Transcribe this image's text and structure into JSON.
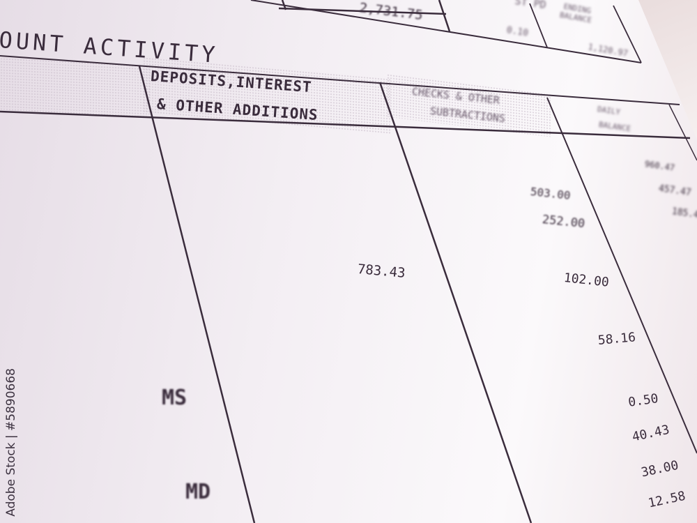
{
  "summary": {
    "total": "2,731.75",
    "col_header_partial": "ST PD",
    "ending_balance_label": "ENDING BALANCE",
    "interest_value": "0.10",
    "ending_balance_value": "1,120.97"
  },
  "section_title": "OUNT ACTIVITY",
  "columns": {
    "deposits": "DEPOSITS,INTEREST",
    "deposits_line2": "& OTHER ADDITIONS",
    "checks": "CHECKS & OTHER",
    "checks_line2": "SUBTRACTIONS",
    "daily": "DAILY",
    "daily_line2": "BALANCE"
  },
  "deposits": [
    "783.43"
  ],
  "checks": [
    "503.00",
    "252.00",
    "102.00",
    "58.16",
    "0.50",
    "40.43",
    "38.00",
    "12.58"
  ],
  "daily_balances": [
    "960.47",
    "457.47",
    "185.4"
  ],
  "codes": [
    "MS",
    "MD"
  ],
  "watermark": "Adobe Stock | #5890668"
}
